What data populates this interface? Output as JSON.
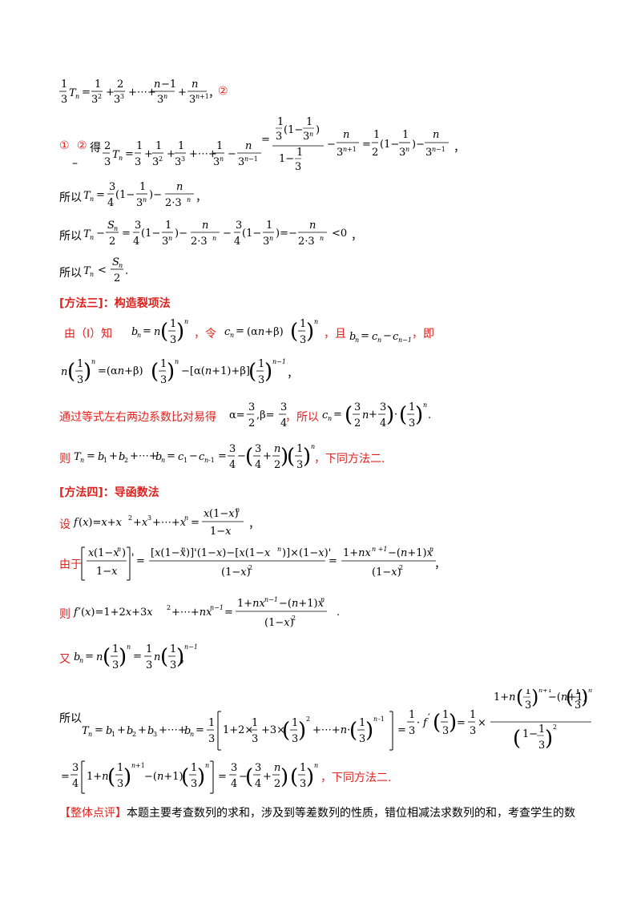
{
  "text": {
    "circled_1": "①",
    "circled_2": "②",
    "de": "得",
    "dash": "–",
    "suoyi": "所以",
    "method3_title": "[方法三]：构造裂项法",
    "you_one": "由（Ⅰ）知",
    "ling": "，令",
    "qie": "，且",
    "ji": "，即",
    "tongguo": "通过等式左右两边系数比对易得",
    "suoyi_comma": "，所以",
    "ze": "则",
    "xiatong": "，下同方法二.",
    "method4_title": "[方法四]：导函数法",
    "she": "设",
    "you": "由于",
    "you2": "又",
    "review_label": "【整体点评】",
    "review_text": "本题主要考查数列的求和，涉及到等差数列的性质，错位相减法求数列的和，考查学生的数"
  }
}
